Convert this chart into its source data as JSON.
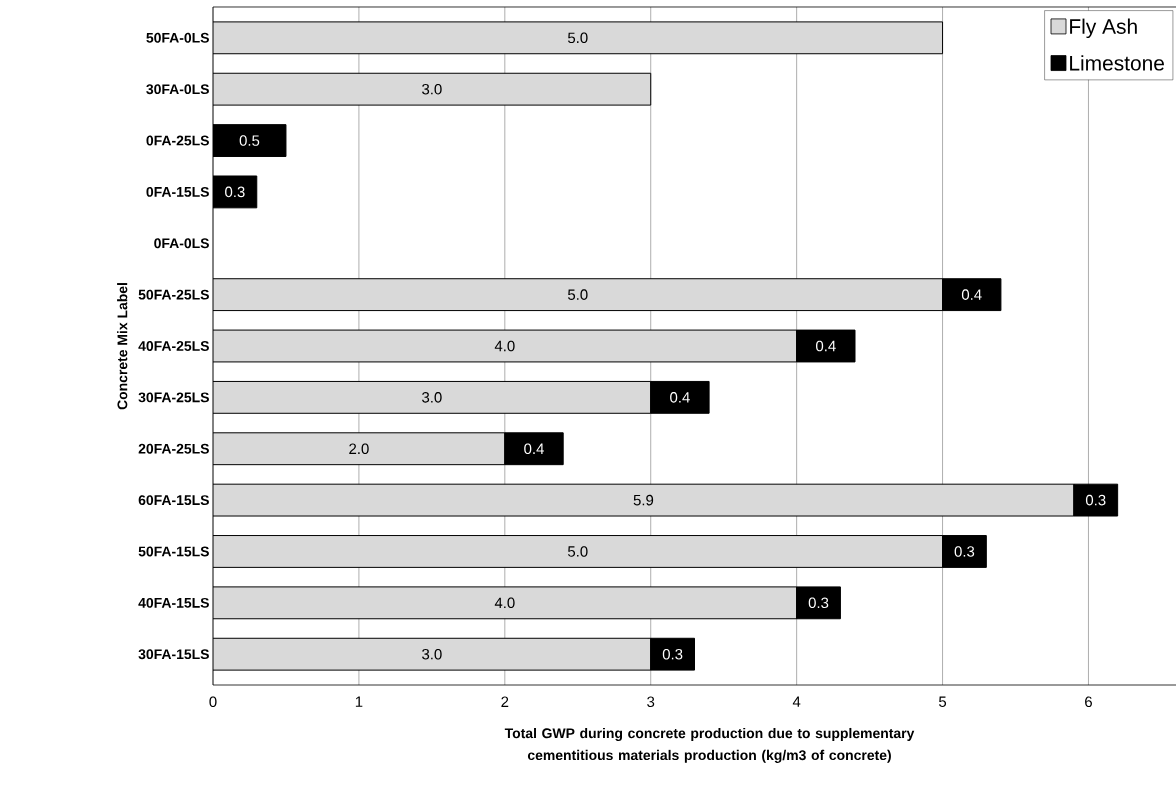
{
  "chart_data": {
    "type": "bar",
    "orientation": "horizontal",
    "stacked": true,
    "xlabel": "Total GWP during concrete production due to supplementary cementitious materials production (kg/m3 of concrete)",
    "ylabel": "Concrete Mix Label",
    "categories": [
      "50FA-0LS",
      "30FA-0LS",
      "0FA-25LS",
      "0FA-15LS",
      "0FA-0LS",
      "50FA-25LS",
      "40FA-25LS",
      "30FA-25LS",
      "20FA-25LS",
      "60FA-15LS",
      "50FA-15LS",
      "40FA-15LS",
      "30FA-15LS"
    ],
    "series": [
      {
        "name": "Fly Ash",
        "color": "#d9d9d9",
        "values": [
          5.0,
          3.0,
          null,
          null,
          null,
          5.0,
          4.0,
          3.0,
          2.0,
          5.9,
          5.0,
          4.0,
          3.0
        ],
        "value_labels": [
          "5.0",
          "3.0",
          null,
          null,
          null,
          "5.0",
          "4.0",
          "3.0",
          "2.0",
          "5.9",
          "5.0",
          "4.0",
          "3.0"
        ]
      },
      {
        "name": "Limestone",
        "color": "#000000",
        "values": [
          null,
          null,
          0.5,
          0.3,
          null,
          0.4,
          0.4,
          0.4,
          0.4,
          0.3,
          0.3,
          0.3,
          0.3
        ],
        "value_labels": [
          null,
          null,
          "0.5",
          "0.3",
          null,
          "0.4",
          "0.4",
          "0.4",
          "0.4",
          "0.3",
          "0.3",
          "0.3",
          "0.3"
        ]
      }
    ],
    "xlim": [
      0,
      6.6
    ],
    "xticks": [
      0,
      1,
      2,
      3,
      4,
      5,
      6
    ],
    "grid": "x",
    "legend": "top right"
  }
}
